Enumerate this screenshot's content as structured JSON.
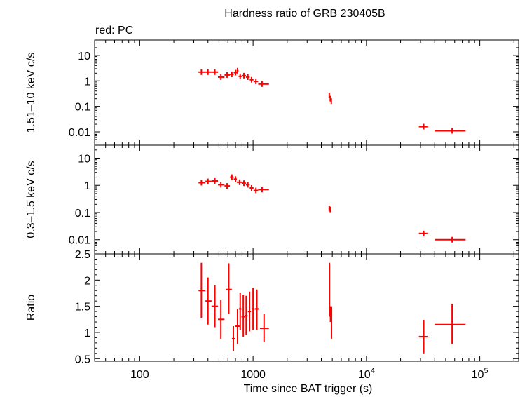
{
  "title": "Hardness ratio of GRB 230405B",
  "legend_note": "red: PC",
  "colors": {
    "data": "#ff0000",
    "axes": "#000000"
  },
  "chart_data": [
    {
      "panel": "hard_band",
      "type": "scatter",
      "ylabel": "1.51–10 keV c/s",
      "xscale": "log",
      "yscale": "log",
      "xlim": [
        40,
        220000
      ],
      "ylim": [
        0.003,
        40
      ],
      "yticks": [
        {
          "v": 0.01,
          "label": "0.01"
        },
        {
          "v": 0.1,
          "label": "0.1"
        },
        {
          "v": 1,
          "label": "1"
        },
        {
          "v": 10,
          "label": "10"
        }
      ],
      "series": [
        {
          "color": "#ff0000",
          "points": [
            {
              "x": 350,
              "xlo": 330,
              "xhi": 380,
              "y": 2.2
            },
            {
              "x": 400,
              "xlo": 380,
              "xhi": 430,
              "y": 2.2
            },
            {
              "x": 460,
              "xlo": 430,
              "xhi": 490,
              "y": 2.2
            },
            {
              "x": 520,
              "xlo": 490,
              "xhi": 560,
              "y": 1.4
            },
            {
              "x": 590,
              "xlo": 560,
              "xhi": 625,
              "y": 1.7
            },
            {
              "x": 650,
              "xlo": 625,
              "xhi": 675,
              "y": 1.8
            },
            {
              "x": 700,
              "xlo": 675,
              "xhi": 720,
              "y": 2.1
            },
            {
              "x": 730,
              "xlo": 715,
              "xhi": 745,
              "y": 2.5
            },
            {
              "x": 770,
              "xlo": 745,
              "xhi": 795,
              "y": 1.5
            },
            {
              "x": 830,
              "xlo": 795,
              "xhi": 865,
              "y": 1.6
            },
            {
              "x": 900,
              "xlo": 865,
              "xhi": 935,
              "y": 1.4
            },
            {
              "x": 970,
              "xlo": 935,
              "xhi": 1010,
              "y": 1.1
            },
            {
              "x": 1060,
              "xlo": 1010,
              "xhi": 1110,
              "y": 0.95
            },
            {
              "x": 1200,
              "xlo": 1110,
              "xhi": 1380,
              "y": 0.75
            },
            {
              "x": 4700,
              "xlo": 4650,
              "xhi": 4750,
              "y": 0.27
            },
            {
              "x": 4800,
              "xlo": 4750,
              "xhi": 4850,
              "y": 0.2
            },
            {
              "x": 4900,
              "xlo": 4850,
              "xhi": 4950,
              "y": 0.16
            },
            {
              "x": 32000,
              "xlo": 29000,
              "xhi": 35000,
              "y": 0.016
            },
            {
              "x": 57000,
              "xlo": 40000,
              "xhi": 75000,
              "y": 0.011
            }
          ]
        }
      ]
    },
    {
      "panel": "soft_band",
      "type": "scatter",
      "ylabel": "0.3–1.5 keV c/s",
      "xscale": "log",
      "yscale": "log",
      "xlim": [
        40,
        220000
      ],
      "ylim": [
        0.003,
        30
      ],
      "yticks": [
        {
          "v": 0.01,
          "label": "0.01"
        },
        {
          "v": 0.1,
          "label": "0.1"
        },
        {
          "v": 1,
          "label": "1"
        },
        {
          "v": 10,
          "label": "10"
        }
      ],
      "series": [
        {
          "color": "#ff0000",
          "points": [
            {
              "x": 350,
              "xlo": 330,
              "xhi": 380,
              "y": 1.25
            },
            {
              "x": 400,
              "xlo": 380,
              "xhi": 430,
              "y": 1.4
            },
            {
              "x": 460,
              "xlo": 430,
              "xhi": 490,
              "y": 1.45
            },
            {
              "x": 520,
              "xlo": 490,
              "xhi": 560,
              "y": 1.05
            },
            {
              "x": 590,
              "xlo": 560,
              "xhi": 625,
              "y": 0.95
            },
            {
              "x": 650,
              "xlo": 625,
              "xhi": 675,
              "y": 2.0
            },
            {
              "x": 700,
              "xlo": 675,
              "xhi": 720,
              "y": 1.7
            },
            {
              "x": 760,
              "xlo": 720,
              "xhi": 795,
              "y": 1.3
            },
            {
              "x": 830,
              "xlo": 795,
              "xhi": 865,
              "y": 1.2
            },
            {
              "x": 900,
              "xlo": 865,
              "xhi": 935,
              "y": 1.05
            },
            {
              "x": 970,
              "xlo": 935,
              "xhi": 1010,
              "y": 0.8
            },
            {
              "x": 1060,
              "xlo": 1010,
              "xhi": 1110,
              "y": 0.65
            },
            {
              "x": 1200,
              "xlo": 1110,
              "xhi": 1380,
              "y": 0.7
            },
            {
              "x": 4700,
              "xlo": 4650,
              "xhi": 4750,
              "y": 0.14
            },
            {
              "x": 4800,
              "xlo": 4750,
              "xhi": 4850,
              "y": 0.13
            },
            {
              "x": 32000,
              "xlo": 29000,
              "xhi": 35000,
              "y": 0.017
            },
            {
              "x": 57000,
              "xlo": 40000,
              "xhi": 75000,
              "y": 0.01
            }
          ]
        }
      ]
    },
    {
      "panel": "ratio",
      "type": "scatter",
      "ylabel": "Ratio",
      "xlabel": "Time since BAT trigger (s)",
      "xscale": "log",
      "yscale": "linear",
      "xlim": [
        40,
        220000
      ],
      "ylim": [
        0.45,
        2.5
      ],
      "yticks": [
        {
          "v": 0.5,
          "label": "0.5"
        },
        {
          "v": 1,
          "label": "1"
        },
        {
          "v": 1.5,
          "label": "1.5"
        },
        {
          "v": 2,
          "label": "2"
        },
        {
          "v": 2.5,
          "label": "2.5"
        }
      ],
      "xticks": [
        {
          "v": 100,
          "label": "100"
        },
        {
          "v": 1000,
          "label": "1000"
        },
        {
          "v": 10000,
          "label": "10",
          "exp": "4"
        },
        {
          "v": 100000,
          "label": "10",
          "exp": "5"
        }
      ],
      "series": [
        {
          "color": "#ff0000",
          "points": [
            {
              "x": 350,
              "xlo": 330,
              "xhi": 380,
              "y": 1.8,
              "ylo": 1.28,
              "yhi": 2.33
            },
            {
              "x": 400,
              "xlo": 380,
              "xhi": 430,
              "y": 1.6,
              "ylo": 1.15,
              "yhi": 2.05
            },
            {
              "x": 460,
              "xlo": 430,
              "xhi": 490,
              "y": 1.5,
              "ylo": 1.1,
              "yhi": 1.9
            },
            {
              "x": 520,
              "xlo": 490,
              "xhi": 560,
              "y": 1.25,
              "ylo": 0.88,
              "yhi": 1.62
            },
            {
              "x": 610,
              "xlo": 575,
              "xhi": 650,
              "y": 1.82,
              "ylo": 1.35,
              "yhi": 2.32
            },
            {
              "x": 670,
              "xlo": 650,
              "xhi": 690,
              "y": 0.88,
              "ylo": 0.65,
              "yhi": 1.12
            },
            {
              "x": 730,
              "xlo": 700,
              "xhi": 760,
              "y": 1.12,
              "ylo": 0.78,
              "yhi": 1.45
            },
            {
              "x": 770,
              "xlo": 750,
              "xhi": 790,
              "y": 1.45,
              "ylo": 1.05,
              "yhi": 1.75
            },
            {
              "x": 820,
              "xlo": 790,
              "xhi": 850,
              "y": 1.3,
              "ylo": 0.92,
              "yhi": 1.72
            },
            {
              "x": 870,
              "xlo": 845,
              "xhi": 895,
              "y": 1.32,
              "ylo": 0.95,
              "yhi": 1.7
            },
            {
              "x": 930,
              "xlo": 900,
              "xhi": 960,
              "y": 1.4,
              "ylo": 1.02,
              "yhi": 1.78
            },
            {
              "x": 1000,
              "xlo": 970,
              "xhi": 1030,
              "y": 1.45,
              "ylo": 1.05,
              "yhi": 1.85
            },
            {
              "x": 1080,
              "xlo": 1040,
              "xhi": 1120,
              "y": 1.45,
              "ylo": 1.05,
              "yhi": 1.82
            },
            {
              "x": 1250,
              "xlo": 1150,
              "xhi": 1380,
              "y": 1.08,
              "ylo": 0.82,
              "yhi": 1.35
            },
            {
              "x": 4720,
              "xlo": 4680,
              "xhi": 4760,
              "y": 1.82,
              "ylo": 1.3,
              "yhi": 2.33
            },
            {
              "x": 4820,
              "xlo": 4780,
              "xhi": 4860,
              "y": 1.35,
              "ylo": 1.2,
              "yhi": 1.5
            },
            {
              "x": 4920,
              "xlo": 4880,
              "xhi": 4960,
              "y": 1.18,
              "ylo": 0.88,
              "yhi": 1.5
            },
            {
              "x": 32000,
              "xlo": 29000,
              "xhi": 35000,
              "y": 0.92,
              "ylo": 0.6,
              "yhi": 1.24
            },
            {
              "x": 57000,
              "xlo": 40000,
              "xhi": 75000,
              "y": 1.15,
              "ylo": 0.78,
              "yhi": 1.55
            }
          ]
        }
      ]
    }
  ]
}
